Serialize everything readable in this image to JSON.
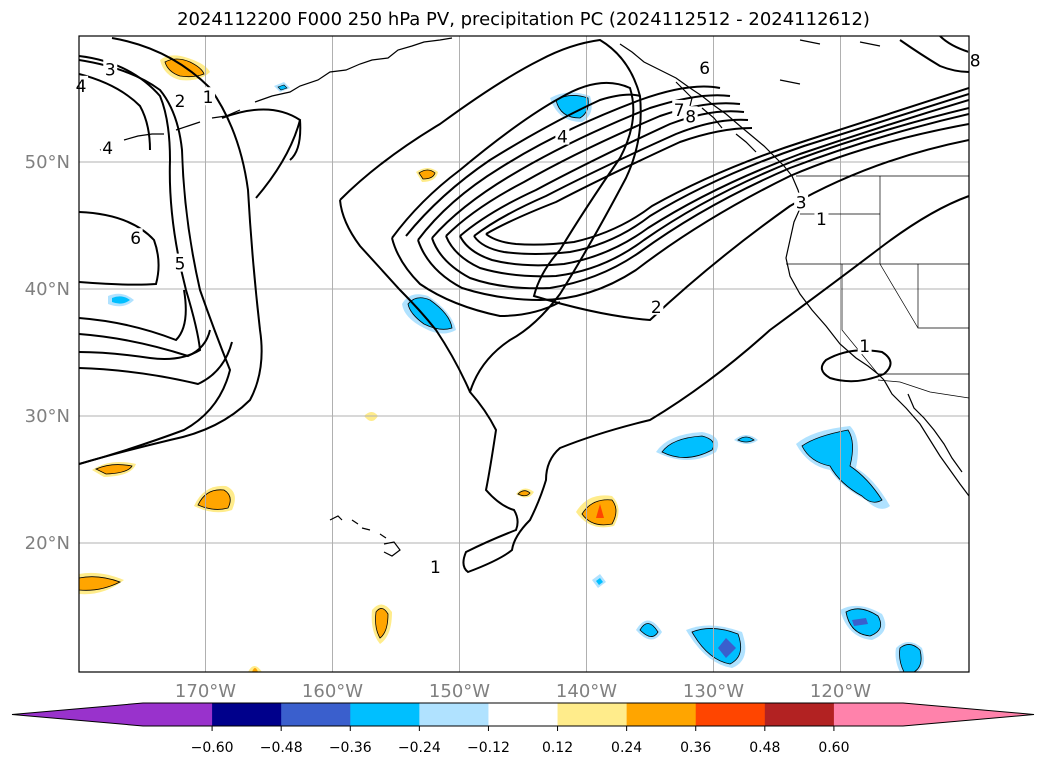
{
  "title": "2024112200 F000 250 hPa PV, precipitation PC (2024112512 - 2024112612)",
  "lat_axis": [
    {
      "lat": 50,
      "label": "50°N"
    },
    {
      "lat": 40,
      "label": "40°N"
    },
    {
      "lat": 30,
      "label": "30°N"
    },
    {
      "lat": 20,
      "label": "20°N"
    }
  ],
  "lon_axis": [
    {
      "lon": -170,
      "label": "170°W"
    },
    {
      "lon": -160,
      "label": "160°W"
    },
    {
      "lon": -150,
      "label": "150°W"
    },
    {
      "lon": -140,
      "label": "140°W"
    },
    {
      "lon": -130,
      "label": "130°W"
    },
    {
      "lon": -120,
      "label": "120°W"
    }
  ],
  "colorbar": {
    "colors": [
      "#9932cc",
      "#9932cc",
      "#00008b",
      "#3a5fcd",
      "#00bfff",
      "#b0e2ff",
      "#ffffff",
      "#ffec8b",
      "#ffa500",
      "#ff4500",
      "#b22222",
      "#ff82ab",
      "#ff82ab"
    ],
    "ticks": [
      "−0.60",
      "−0.48",
      "−0.36",
      "−0.24",
      "−0.12",
      "0.12",
      "0.24",
      "0.36",
      "0.48",
      "0.60"
    ]
  },
  "pv_contour_labels": [
    {
      "text": "3",
      "lon": -177.5,
      "lat": 57.3
    },
    {
      "text": "4",
      "lon": -179.8,
      "lat": 56.0
    },
    {
      "text": "2",
      "lon": -172.0,
      "lat": 54.8
    },
    {
      "text": "1",
      "lon": -169.8,
      "lat": 55.1
    },
    {
      "text": "4",
      "lon": -177.7,
      "lat": 51.1
    },
    {
      "text": "6",
      "lon": -175.5,
      "lat": 44.0
    },
    {
      "text": "5",
      "lon": -172.0,
      "lat": 42.0
    },
    {
      "text": "4",
      "lon": -141.9,
      "lat": 52.0
    },
    {
      "text": "6",
      "lon": -130.7,
      "lat": 57.4
    },
    {
      "text": "7",
      "lon": -132.7,
      "lat": 54.1
    },
    {
      "text": "8",
      "lon": -131.8,
      "lat": 53.6
    },
    {
      "text": "3",
      "lon": -123.1,
      "lat": 46.8
    },
    {
      "text": "1",
      "lon": -121.5,
      "lat": 45.5
    },
    {
      "text": "2",
      "lon": -134.5,
      "lat": 38.6
    },
    {
      "text": "1",
      "lon": -118.1,
      "lat": 35.5
    },
    {
      "text": "1",
      "lon": -151.9,
      "lat": 18.1
    },
    {
      "text": "8",
      "lon": -109.4,
      "lat": 58.0
    }
  ]
}
